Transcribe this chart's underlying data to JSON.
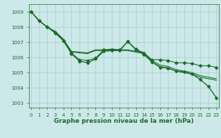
{
  "title": "Graphe pression niveau de la mer (hPa)",
  "bg_color": "#cce8e8",
  "grid_color": "#aacccc",
  "line_color": "#1a6b2a",
  "marker_color": "#1a6b2a",
  "x_ticks": [
    0,
    1,
    2,
    3,
    4,
    5,
    6,
    7,
    8,
    9,
    10,
    11,
    12,
    13,
    14,
    15,
    16,
    17,
    18,
    19,
    20,
    21,
    22,
    23
  ],
  "xlim": [
    -0.3,
    23.3
  ],
  "ylim": [
    1002.7,
    1009.5
  ],
  "y_ticks": [
    1003,
    1004,
    1005,
    1006,
    1007,
    1008,
    1009
  ],
  "series": [
    {
      "y": [
        1009.0,
        1008.4,
        1008.0,
        1007.7,
        1007.2,
        1006.4,
        1006.35,
        1006.3,
        1006.5,
        1006.5,
        1006.55,
        1006.5,
        1006.5,
        1006.4,
        1006.3,
        1005.8,
        1005.5,
        1005.4,
        1005.2,
        1005.1,
        1005.0,
        1004.8,
        1004.7,
        1004.6
      ],
      "marker": null,
      "lw": 0.8
    },
    {
      "y": [
        1009.0,
        1008.4,
        1008.0,
        1007.7,
        1007.15,
        1006.35,
        1006.3,
        1006.25,
        1006.45,
        1006.45,
        1006.5,
        1006.45,
        1006.45,
        1006.35,
        1006.25,
        1005.7,
        1005.4,
        1005.3,
        1005.1,
        1005.0,
        1004.9,
        1004.7,
        1004.6,
        1004.5
      ],
      "marker": null,
      "lw": 0.8
    },
    {
      "y": [
        1009.0,
        1008.4,
        1008.0,
        1007.65,
        1007.1,
        1006.3,
        1005.85,
        1005.8,
        1005.95,
        1006.5,
        1006.5,
        1006.5,
        1007.05,
        1006.55,
        1006.3,
        1005.85,
        1005.85,
        1005.8,
        1005.65,
        1005.65,
        1005.6,
        1005.45,
        1005.45,
        1005.35
      ],
      "marker": "D",
      "lw": 0.8
    },
    {
      "y": [
        1009.0,
        1008.4,
        1008.0,
        1007.6,
        1007.1,
        1006.25,
        1005.75,
        1005.65,
        1005.9,
        1006.4,
        1006.45,
        1006.45,
        1007.05,
        1006.5,
        1006.2,
        1005.7,
        1005.35,
        1005.3,
        1005.1,
        1005.05,
        1004.9,
        1004.55,
        1004.1,
        1003.35
      ],
      "marker": "D",
      "lw": 1.0
    }
  ],
  "marker_size": 2.5,
  "title_fontsize": 6.5,
  "tick_fontsize": 5.0,
  "title_color": "#1a6b2a",
  "tick_color": "#1a6b2a"
}
